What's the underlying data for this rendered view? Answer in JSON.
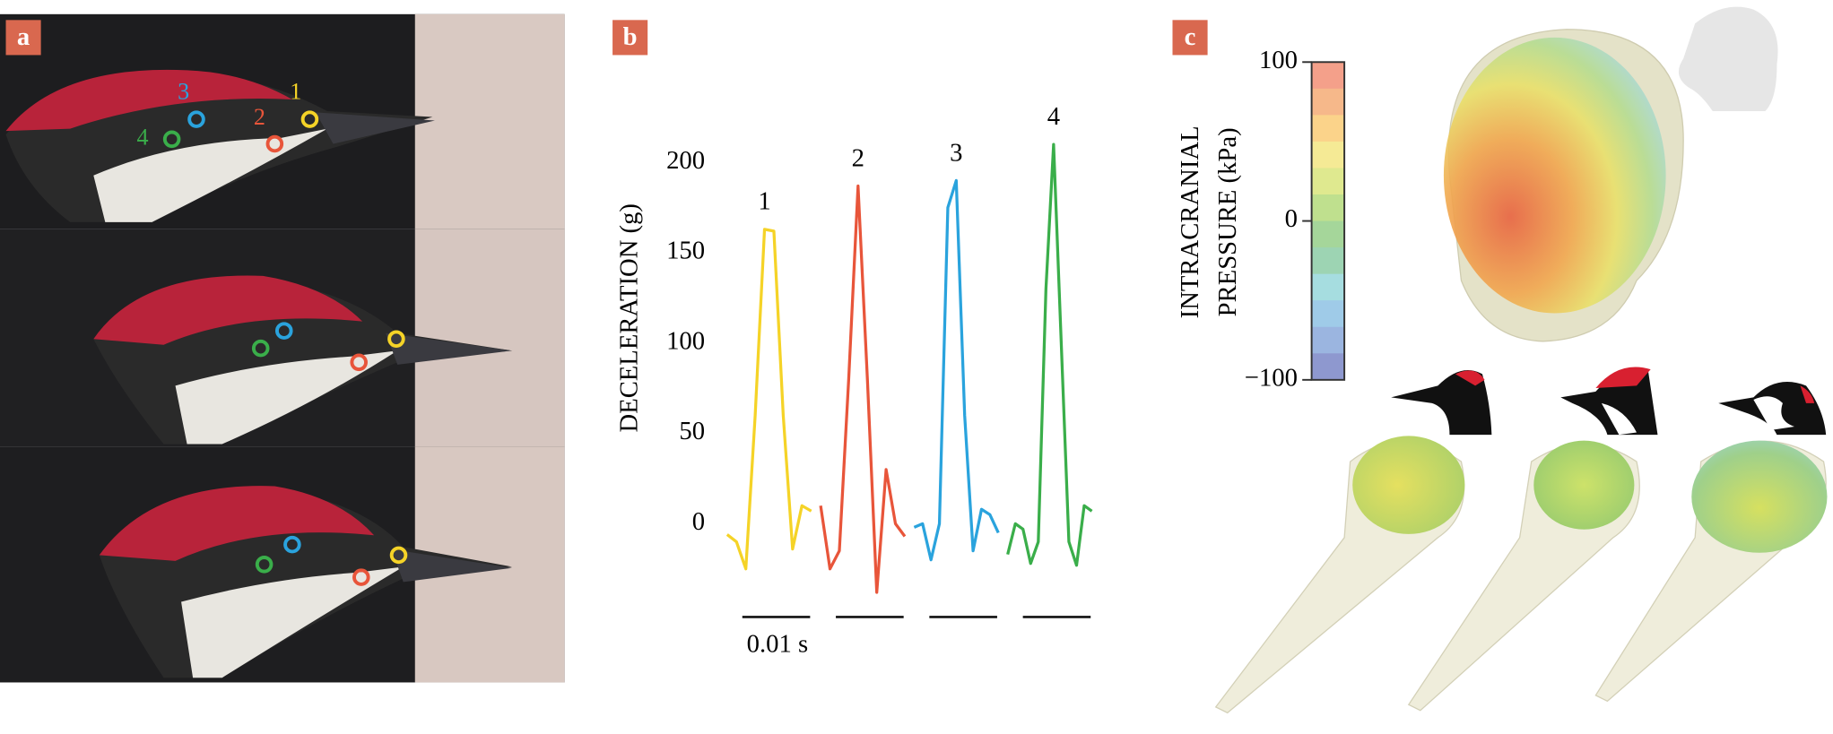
{
  "panel_labels": [
    "a",
    "b",
    "c"
  ],
  "photo_labels": [
    "1",
    "2",
    "3",
    "4"
  ],
  "chart_data": {
    "type": "line",
    "y_label": "DECELERATION (g)",
    "ylim": [
      -40,
      220
    ],
    "yticks": [
      0,
      50,
      100,
      150,
      200
    ],
    "scale_bar": "0.01 s",
    "series": [
      {
        "name": "1",
        "color": "#f5d327",
        "values": [
          -6,
          -10,
          -25,
          60,
          163,
          162,
          60,
          -14,
          10,
          7
        ]
      },
      {
        "name": "2",
        "color": "#e8553a",
        "values": [
          10,
          -25,
          -15,
          80,
          187,
          80,
          -38,
          30,
          0,
          -7
        ]
      },
      {
        "name": "3",
        "color": "#2aa3dd",
        "values": [
          -2,
          0,
          -20,
          0,
          175,
          190,
          60,
          -15,
          8,
          5,
          -5
        ]
      },
      {
        "name": "4",
        "color": "#3aae4a",
        "values": [
          -17,
          0,
          -3,
          -22,
          -10,
          130,
          210,
          100,
          -10,
          -23,
          10,
          7
        ]
      }
    ]
  },
  "colorbar": {
    "label_lines": [
      "INTRACRANIAL",
      "PRESSURE (kPa)"
    ],
    "clim": [
      -100,
      100
    ],
    "ticks": [
      100,
      0,
      {
        "value": -100,
        "label": "−100"
      }
    ],
    "colors": [
      "#f4a08a",
      "#f6b88a",
      "#fbd38a",
      "#f5ea95",
      "#dfe98f",
      "#bfe08e",
      "#a5d69a",
      "#9dd4b3",
      "#a6dde0",
      "#9fcbe8",
      "#9bb5e0",
      "#8e98cf"
    ]
  }
}
